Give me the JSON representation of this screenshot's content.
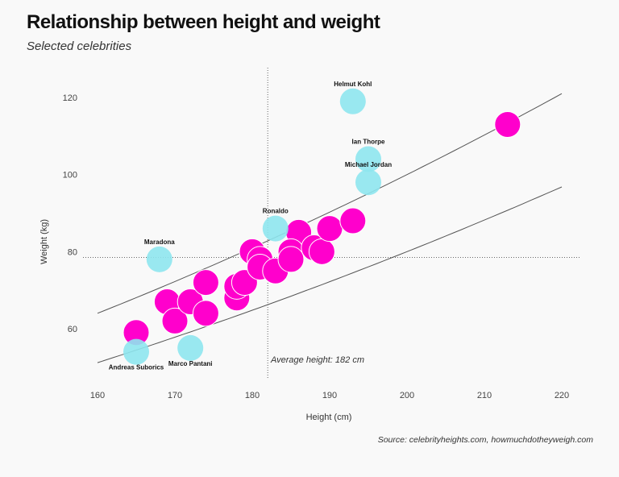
{
  "title": "Relationship between height and weight",
  "subtitle": "Selected celebrities",
  "source": "Source: celebrityheights.com, howmuchdotheyweigh.com",
  "chart_data": {
    "type": "scatter",
    "xlabel": "Height (cm)",
    "ylabel": "Weight (kg)",
    "xlim": [
      157,
      222
    ],
    "ylim": [
      46,
      127
    ],
    "xticks": [
      160,
      170,
      180,
      190,
      200,
      210,
      220
    ],
    "yticks": [
      60,
      80,
      100,
      120
    ],
    "grid": false,
    "colors": {
      "highlighted": "#8ee6ee",
      "other": "#ff00cc",
      "reference_lines": "#555555"
    },
    "average_height": 182,
    "average_height_label": "Average height: 182 cm",
    "average_weight": 78.5,
    "reference_curves_bmi": [
      20,
      25
    ],
    "highlighted": [
      {
        "name": "Helmut Kohl",
        "x": 193,
        "y": 119
      },
      {
        "name": "Ian Thorpe",
        "x": 195,
        "y": 104
      },
      {
        "name": "Michael Jordan",
        "x": 195,
        "y": 98
      },
      {
        "name": "Ronaldo",
        "x": 183,
        "y": 86
      },
      {
        "name": "Maradona",
        "x": 168,
        "y": 78
      },
      {
        "name": "Andreas Suborics",
        "x": 165,
        "y": 54
      },
      {
        "name": "Marco Pantani",
        "x": 172,
        "y": 55
      }
    ],
    "others": [
      {
        "x": 165,
        "y": 59
      },
      {
        "x": 169,
        "y": 67
      },
      {
        "x": 170,
        "y": 62
      },
      {
        "x": 172,
        "y": 67
      },
      {
        "x": 174,
        "y": 72
      },
      {
        "x": 174,
        "y": 64
      },
      {
        "x": 178,
        "y": 68
      },
      {
        "x": 178,
        "y": 71
      },
      {
        "x": 179,
        "y": 72
      },
      {
        "x": 180,
        "y": 80
      },
      {
        "x": 181,
        "y": 78
      },
      {
        "x": 181,
        "y": 76
      },
      {
        "x": 183,
        "y": 75
      },
      {
        "x": 186,
        "y": 85
      },
      {
        "x": 185,
        "y": 80
      },
      {
        "x": 185,
        "y": 78
      },
      {
        "x": 188,
        "y": 81
      },
      {
        "x": 189,
        "y": 80
      },
      {
        "x": 190,
        "y": 86
      },
      {
        "x": 193,
        "y": 88
      },
      {
        "x": 213,
        "y": 113
      }
    ]
  }
}
